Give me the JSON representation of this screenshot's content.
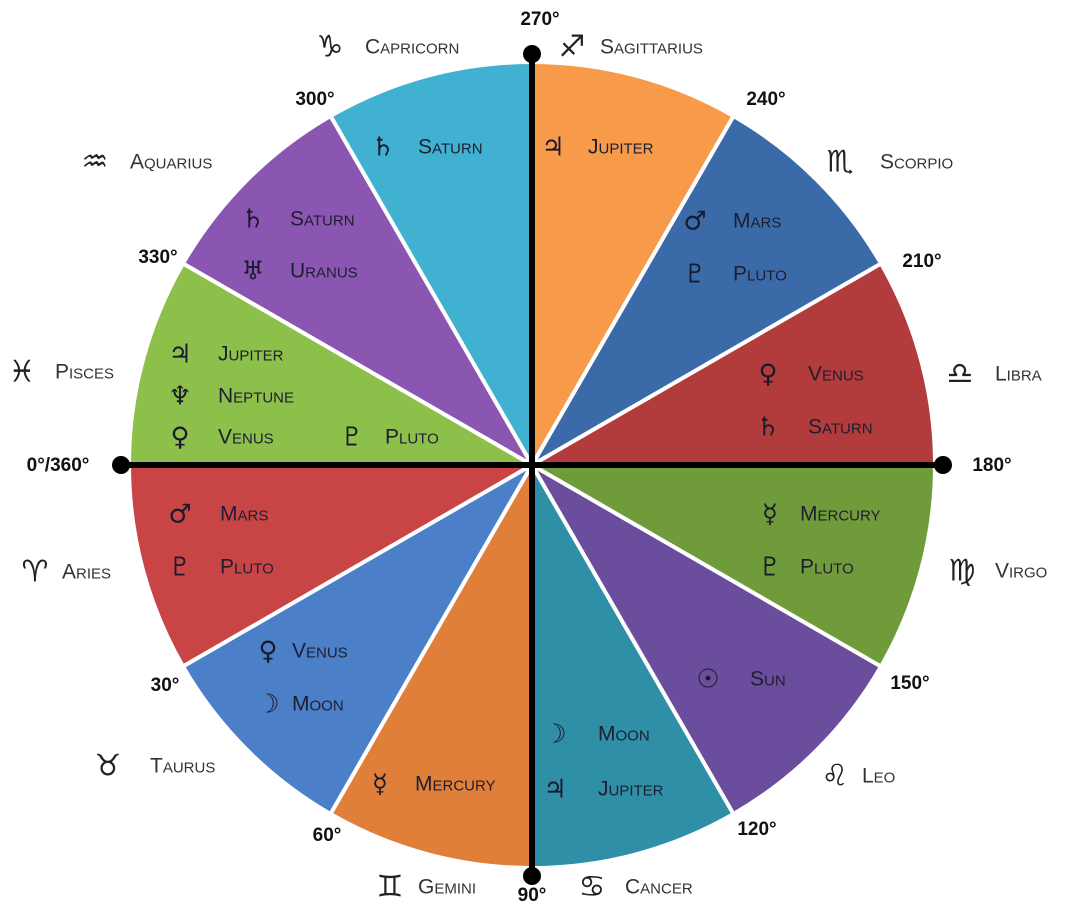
{
  "signs": [
    {
      "name": "Aries",
      "glyph": "♈",
      "planets": [
        {
          "glyph": "♂",
          "name": "Mars"
        },
        {
          "glyph": "♇",
          "name": "Pluto"
        }
      ]
    },
    {
      "name": "Taurus",
      "glyph": "♉",
      "planets": [
        {
          "glyph": "♀",
          "name": "Venus"
        },
        {
          "glyph": "☽",
          "name": "Moon"
        }
      ]
    },
    {
      "name": "Gemini",
      "glyph": "♊",
      "planets": [
        {
          "glyph": "☿",
          "name": "Mercury"
        }
      ]
    },
    {
      "name": "Cancer",
      "glyph": "♋",
      "planets": [
        {
          "glyph": "☽",
          "name": "Moon"
        },
        {
          "glyph": "♃",
          "name": "Jupiter"
        }
      ]
    },
    {
      "name": "Leo",
      "glyph": "♌",
      "planets": [
        {
          "glyph": "☉",
          "name": "Sun"
        }
      ]
    },
    {
      "name": "Virgo",
      "glyph": "♍",
      "planets": [
        {
          "glyph": "☿",
          "name": "Mercury"
        },
        {
          "glyph": "♇",
          "name": "Pluto"
        }
      ]
    },
    {
      "name": "Libra",
      "glyph": "♎",
      "planets": [
        {
          "glyph": "♀",
          "name": "Venus"
        },
        {
          "glyph": "♄",
          "name": "Saturn"
        }
      ]
    },
    {
      "name": "Scorpio",
      "glyph": "♏",
      "planets": [
        {
          "glyph": "♂",
          "name": "Mars"
        },
        {
          "glyph": "♇",
          "name": "Pluto"
        }
      ]
    },
    {
      "name": "Sagittarius",
      "glyph": "♐",
      "planets": [
        {
          "glyph": "♃",
          "name": "Jupiter"
        }
      ]
    },
    {
      "name": "Capricorn",
      "glyph": "♑",
      "planets": [
        {
          "glyph": "♄",
          "name": "Saturn"
        }
      ]
    },
    {
      "name": "Aquarius",
      "glyph": "♒",
      "planets": [
        {
          "glyph": "♄",
          "name": "Saturn"
        },
        {
          "glyph": "♅",
          "name": "Uranus"
        }
      ]
    },
    {
      "name": "Pisces",
      "glyph": "♓",
      "planets": [
        {
          "glyph": "♃",
          "name": "Jupiter"
        },
        {
          "glyph": "♆",
          "name": "Neptune"
        },
        {
          "glyph": "♀",
          "name": "Venus"
        },
        {
          "glyph": "♇",
          "name": "Pluto"
        }
      ]
    }
  ],
  "degrees": [
    "0°/360°",
    "30°",
    "60°",
    "90°",
    "120°",
    "150°",
    "180°",
    "210°",
    "240°",
    "270°",
    "300°",
    "330°"
  ]
}
